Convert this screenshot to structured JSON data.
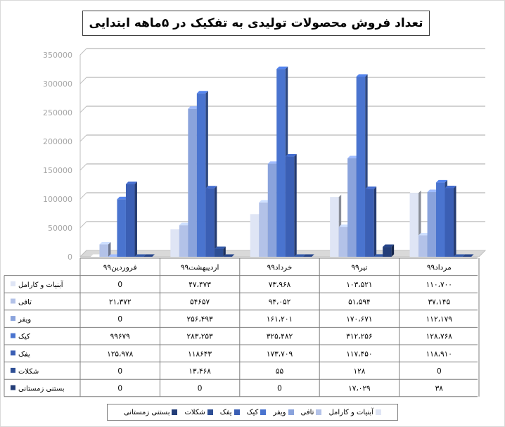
{
  "chart_data": {
    "type": "bar",
    "title": "تعداد فروش محصولات تولیدی به تفکیک در ۵ماهه ابتدایی",
    "ylim": [
      0,
      350000
    ],
    "yticks": [
      "0",
      "50000",
      "100000",
      "150000",
      "200000",
      "250000",
      "300000",
      "350000"
    ],
    "grid": true,
    "legend_position": "bottom",
    "categories": [
      "فروردین۹۹",
      "اردیبهشت۹۹",
      "خرداد۹۹",
      "تیر۹۹",
      "مرداد۹۹"
    ],
    "series": [
      {
        "name": "آبنیات و کارامل",
        "color": "#dfe5f5",
        "values": [
          0,
          47473,
          73968,
          103521,
          110700
        ],
        "labels": [
          "0",
          "۴۷،۴۷۳",
          "۷۳،۹۶۸",
          "۱۰۳،۵۲۱",
          "۱۱۰،۷۰۰"
        ]
      },
      {
        "name": "تافی",
        "color": "#b3c2e8",
        "values": [
          21372,
          54657,
          94052,
          51594,
          37145
        ],
        "labels": [
          "۲۱،۳۷۲",
          "۵۴۶۵۷",
          "۹۴،۰۵۲",
          "۵۱،۵۹۴",
          "۳۷،۱۴۵"
        ]
      },
      {
        "name": "ویفر",
        "color": "#8aa3dc",
        "values": [
          0,
          256493,
          161201,
          170671,
          112179
        ],
        "labels": [
          "0",
          "۲۵۶،۴۹۳",
          "۱۶۱،۲۰۱",
          "۱۷۰،۶۷۱",
          "۱۱۲،۱۷۹"
        ]
      },
      {
        "name": "کیک",
        "color": "#4a74cf",
        "values": [
          99679,
          283253,
          325482,
          312256,
          128768
        ],
        "labels": [
          "۹۹۶۷۹",
          "۲۸۳،۲۵۳",
          "۳۲۵،۴۸۲",
          "۳۱۲،۲۵۶",
          "۱۲۸،۷۶۸"
        ]
      },
      {
        "name": "یفک",
        "color": "#3b5fb4",
        "values": [
          125978,
          118643,
          173709,
          117450,
          118910
        ],
        "labels": [
          "۱۲۵،۹۷۸",
          "۱۱۸۶۴۳",
          "۱۷۳،۷۰۹",
          "۱۱۷،۴۵۰",
          "۱۱۸،۹۱۰"
        ]
      },
      {
        "name": "شکلات",
        "color": "#2e4f95",
        "values": [
          0,
          13468,
          55,
          128,
          0
        ],
        "labels": [
          "0",
          "۱۳،۴۶۸",
          "۵۵",
          "۱۲۸",
          "0"
        ]
      },
      {
        "name": "بستنی زمستانی",
        "color": "#233d78",
        "values": [
          0,
          0,
          0,
          17029,
          38
        ],
        "labels": [
          "0",
          "0",
          "0",
          "۱۷،۰۲۹",
          "۳۸"
        ]
      }
    ]
  }
}
